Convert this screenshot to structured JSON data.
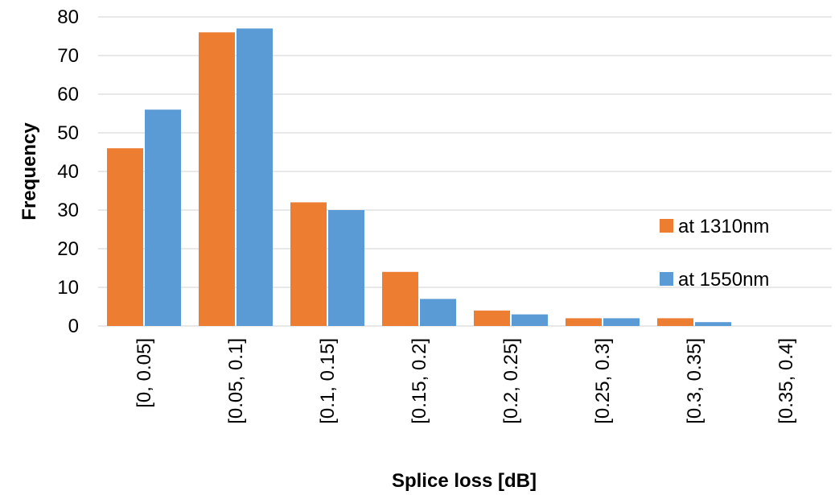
{
  "chart_data": {
    "type": "bar",
    "title": "",
    "xlabel": "Splice loss [dB]",
    "ylabel": "Frequency",
    "categories": [
      "[0, 0.05]",
      "[0.05, 0.1]",
      "[0.1, 0.15]",
      "[0.15, 0.2]",
      "[0.2, 0.25]",
      "[0.25, 0.3]",
      "[0.3, 0.35]",
      "[0.35, 0.4]"
    ],
    "series": [
      {
        "name": "at 1310nm",
        "color": "#ed7d31",
        "values": [
          46,
          76,
          32,
          14,
          4,
          2,
          2,
          0
        ]
      },
      {
        "name": "at 1550nm",
        "color": "#5b9bd5",
        "values": [
          56,
          77,
          30,
          7,
          3,
          2,
          1,
          0
        ]
      }
    ],
    "ylim": [
      0,
      80
    ],
    "yticks": [
      0,
      10,
      20,
      30,
      40,
      50,
      60,
      70,
      80
    ],
    "grid": true,
    "legend_position": "right"
  }
}
